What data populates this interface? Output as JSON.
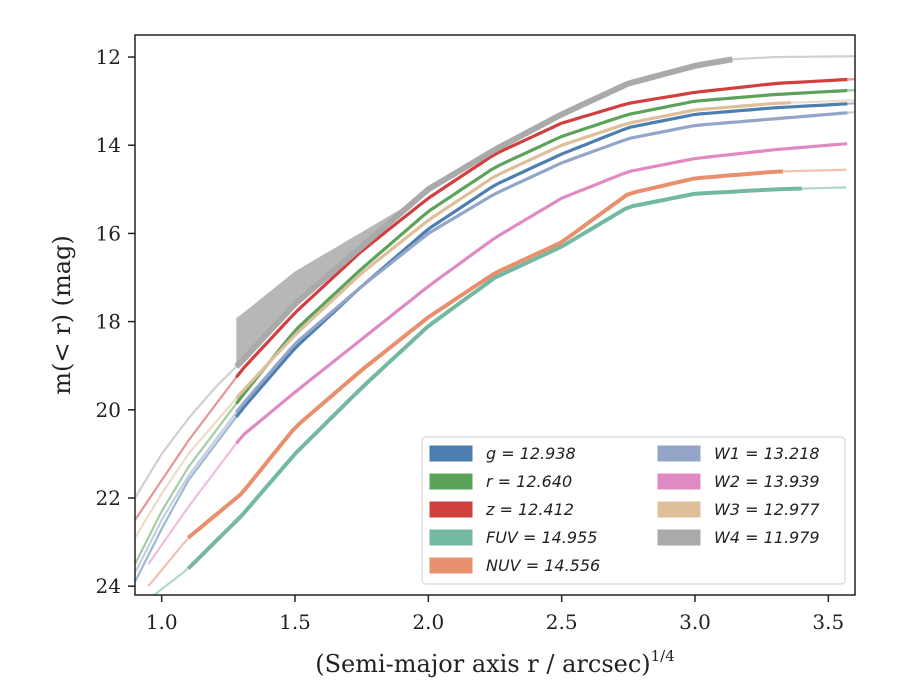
{
  "chart_data": {
    "type": "line",
    "xlabel": "(Semi-major axis r / arcsec)",
    "xlabel_sup": "1/4",
    "ylabel": "m(< r) (mag)",
    "xlim": [
      0.9,
      3.6
    ],
    "ylim": [
      24.2,
      11.5
    ],
    "y_inverted": true,
    "xticks": [
      1.0,
      1.5,
      2.0,
      2.5,
      3.0,
      3.5
    ],
    "xtick_labels": [
      "1.0",
      "1.5",
      "2.0",
      "2.5",
      "3.0",
      "3.5"
    ],
    "yticks": [
      12,
      14,
      16,
      18,
      20,
      22,
      24
    ],
    "ytick_labels": [
      "12",
      "14",
      "16",
      "18",
      "20",
      "22",
      "24"
    ],
    "grid": false,
    "legend_position": "lower-right",
    "series": [
      {
        "name": "g = 12.938",
        "color": "#4c7fb0",
        "x_start": 1.28,
        "x_end": 3.6,
        "points": [
          [
            0.9,
            23.9
          ],
          [
            1.0,
            22.7
          ],
          [
            1.1,
            21.6
          ],
          [
            1.2,
            20.8
          ],
          [
            1.3,
            20.0
          ],
          [
            1.5,
            18.6
          ],
          [
            1.75,
            17.2
          ],
          [
            2.0,
            15.9
          ],
          [
            2.25,
            14.9
          ],
          [
            2.5,
            14.2
          ],
          [
            2.75,
            13.6
          ],
          [
            3.0,
            13.3
          ],
          [
            3.3,
            13.15
          ],
          [
            3.6,
            13.05
          ]
        ]
      },
      {
        "name": "r = 12.640",
        "color": "#5ba35b",
        "x_start": 1.28,
        "x_end": 3.6,
        "points": [
          [
            0.9,
            23.5
          ],
          [
            1.0,
            22.3
          ],
          [
            1.1,
            21.3
          ],
          [
            1.2,
            20.5
          ],
          [
            1.3,
            19.7
          ],
          [
            1.5,
            18.2
          ],
          [
            1.75,
            16.8
          ],
          [
            2.0,
            15.5
          ],
          [
            2.25,
            14.5
          ],
          [
            2.5,
            13.8
          ],
          [
            2.75,
            13.3
          ],
          [
            3.0,
            13.0
          ],
          [
            3.3,
            12.85
          ],
          [
            3.6,
            12.75
          ]
        ]
      },
      {
        "name": "z = 12.412",
        "color": "#d13f3f",
        "x_start": 1.28,
        "x_end": 3.6,
        "points": [
          [
            0.9,
            22.5
          ],
          [
            1.0,
            21.6
          ],
          [
            1.1,
            20.7
          ],
          [
            1.2,
            19.9
          ],
          [
            1.3,
            19.1
          ],
          [
            1.5,
            17.8
          ],
          [
            1.75,
            16.4
          ],
          [
            2.0,
            15.2
          ],
          [
            2.25,
            14.2
          ],
          [
            2.5,
            13.5
          ],
          [
            2.75,
            13.05
          ],
          [
            3.0,
            12.8
          ],
          [
            3.3,
            12.6
          ],
          [
            3.6,
            12.5
          ]
        ]
      },
      {
        "name": "FUV = 14.955",
        "color": "#73b8a1",
        "x_start": 1.1,
        "x_end": 3.4,
        "points": [
          [
            0.95,
            24.3
          ],
          [
            1.1,
            23.6
          ],
          [
            1.3,
            22.4
          ],
          [
            1.5,
            21.0
          ],
          [
            1.75,
            19.5
          ],
          [
            2.0,
            18.1
          ],
          [
            2.25,
            17.0
          ],
          [
            2.5,
            16.3
          ],
          [
            2.75,
            15.4
          ],
          [
            3.0,
            15.1
          ],
          [
            3.3,
            15.0
          ],
          [
            3.6,
            14.95
          ]
        ]
      },
      {
        "name": "NUV = 14.556",
        "color": "#e8906e",
        "x_start": 1.1,
        "x_end": 3.33,
        "points": [
          [
            0.95,
            24.0
          ],
          [
            1.1,
            22.9
          ],
          [
            1.3,
            21.9
          ],
          [
            1.5,
            20.4
          ],
          [
            1.75,
            19.1
          ],
          [
            2.0,
            17.9
          ],
          [
            2.25,
            16.9
          ],
          [
            2.5,
            16.2
          ],
          [
            2.75,
            15.1
          ],
          [
            3.0,
            14.75
          ],
          [
            3.3,
            14.6
          ],
          [
            3.6,
            14.55
          ]
        ]
      },
      {
        "name": "W1 = 13.218",
        "color": "#93a5c9",
        "x_start": 1.28,
        "x_end": 3.6,
        "points": [
          [
            0.9,
            23.7
          ],
          [
            1.0,
            22.5
          ],
          [
            1.1,
            21.5
          ],
          [
            1.2,
            20.7
          ],
          [
            1.3,
            19.9
          ],
          [
            1.5,
            18.5
          ],
          [
            1.75,
            17.2
          ],
          [
            2.0,
            16.0
          ],
          [
            2.25,
            15.1
          ],
          [
            2.5,
            14.4
          ],
          [
            2.75,
            13.85
          ],
          [
            3.0,
            13.55
          ],
          [
            3.3,
            13.4
          ],
          [
            3.6,
            13.25
          ]
        ]
      },
      {
        "name": "W2 = 13.939",
        "color": "#e08ac4",
        "x_start": 1.28,
        "x_end": 3.6,
        "points": [
          [
            0.95,
            23.5
          ],
          [
            1.1,
            22.2
          ],
          [
            1.3,
            20.6
          ],
          [
            1.5,
            19.6
          ],
          [
            1.75,
            18.4
          ],
          [
            2.0,
            17.2
          ],
          [
            2.25,
            16.1
          ],
          [
            2.5,
            15.2
          ],
          [
            2.75,
            14.6
          ],
          [
            3.0,
            14.3
          ],
          [
            3.3,
            14.1
          ],
          [
            3.6,
            13.95
          ]
        ]
      },
      {
        "name": "W3 = 12.977",
        "color": "#dfbf99",
        "x_start": 1.28,
        "x_end": 3.36,
        "points": [
          [
            0.9,
            22.9
          ],
          [
            1.0,
            21.9
          ],
          [
            1.1,
            21.0
          ],
          [
            1.2,
            20.3
          ],
          [
            1.3,
            19.6
          ],
          [
            1.5,
            18.3
          ],
          [
            1.75,
            16.9
          ],
          [
            2.0,
            15.7
          ],
          [
            2.25,
            14.7
          ],
          [
            2.5,
            14.0
          ],
          [
            2.75,
            13.5
          ],
          [
            3.0,
            13.2
          ],
          [
            3.3,
            13.05
          ],
          [
            3.6,
            12.98
          ]
        ]
      },
      {
        "name": "W4 = 11.979",
        "color": "#aaaaaa",
        "x_start": 1.28,
        "x_end": 3.14,
        "points": [
          [
            0.9,
            22.0
          ],
          [
            1.0,
            21.0
          ],
          [
            1.1,
            20.2
          ],
          [
            1.2,
            19.5
          ],
          [
            1.3,
            18.9
          ],
          [
            1.5,
            17.6
          ],
          [
            1.75,
            16.3
          ],
          [
            2.0,
            15.0
          ],
          [
            2.25,
            14.1
          ],
          [
            2.5,
            13.3
          ],
          [
            2.75,
            12.6
          ],
          [
            3.0,
            12.2
          ],
          [
            3.14,
            12.05
          ],
          [
            3.3,
            12.0
          ],
          [
            3.6,
            11.98
          ]
        ]
      }
    ]
  }
}
